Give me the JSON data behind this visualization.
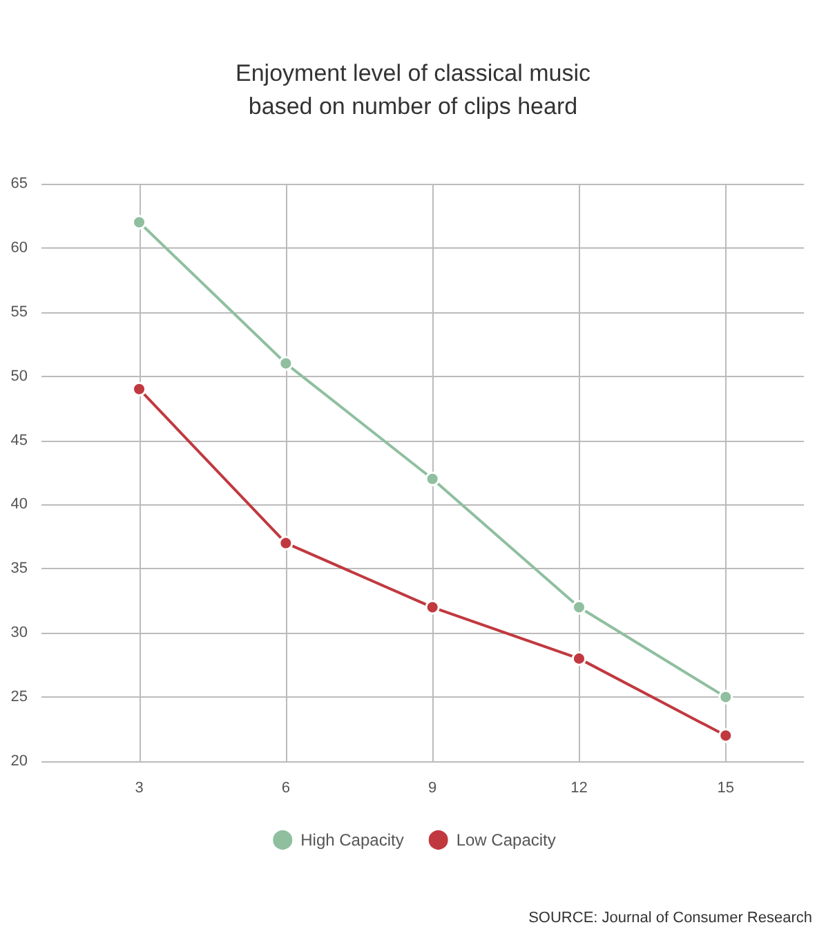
{
  "chart_data": {
    "type": "line",
    "title": "Enjoyment level of classical music\nbased on number of clips heard",
    "x": [
      3,
      6,
      9,
      12,
      15
    ],
    "series": [
      {
        "name": "High Capacity",
        "color": "#8fbf9f",
        "values": [
          62,
          51,
          42,
          32,
          25
        ]
      },
      {
        "name": "Low Capacity",
        "color": "#c0393f",
        "values": [
          49,
          37,
          32,
          28,
          22
        ]
      }
    ],
    "xlim": [
      1,
      16.6
    ],
    "xticks": [
      3,
      6,
      9,
      12,
      15
    ],
    "ylim": [
      20,
      65
    ],
    "yticks": [
      20,
      25,
      30,
      35,
      40,
      45,
      50,
      55,
      60,
      65
    ],
    "grid": true,
    "legend": "bottom",
    "marker": "circle",
    "line_style": "solid",
    "annotations": [
      "SOURCE: Journal of Consumer Research"
    ]
  }
}
